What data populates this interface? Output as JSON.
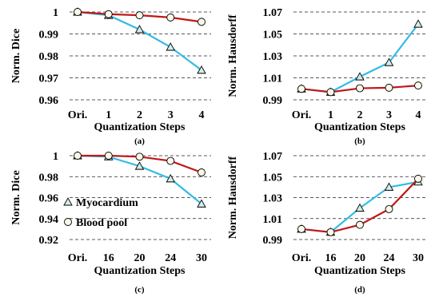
{
  "chart_data": [
    {
      "type": "line",
      "caption": "(a)",
      "xlabel": "Quantization Steps",
      "ylabel": "Norm. Dice",
      "categories": [
        "Ori.",
        "1",
        "2",
        "3",
        "4"
      ],
      "yticks": [
        "1",
        "0.99",
        "0.98",
        "0.97",
        "0.96"
      ],
      "ylim": [
        0.96,
        1.0
      ],
      "grid": true,
      "series": [
        {
          "name": "Myocardium",
          "color": "#33bbe6",
          "marker": "triangle",
          "values": [
            1.0,
            0.9985,
            0.992,
            0.984,
            0.9735
          ]
        },
        {
          "name": "Blood pool",
          "color": "#c01818",
          "marker": "circle",
          "values": [
            1.0,
            0.999,
            0.9985,
            0.9975,
            0.9955
          ]
        }
      ]
    },
    {
      "type": "line",
      "caption": "(b)",
      "xlabel": "Quantization Steps",
      "ylabel": "Norm. Hausdorff",
      "categories": [
        "Ori.",
        "1",
        "2",
        "3",
        "4"
      ],
      "yticks": [
        "1.07",
        "1.05",
        "1.03",
        "1.01",
        "0.99"
      ],
      "ylim": [
        0.99,
        1.07
      ],
      "grid": true,
      "series": [
        {
          "name": "Myocardium",
          "color": "#33bbe6",
          "marker": "triangle",
          "values": [
            1.0,
            0.997,
            1.011,
            1.024,
            1.059
          ]
        },
        {
          "name": "Blood pool",
          "color": "#c01818",
          "marker": "circle",
          "values": [
            1.0,
            0.997,
            1.0005,
            1.001,
            1.003
          ]
        }
      ]
    },
    {
      "type": "line",
      "caption": "(c)",
      "xlabel": "Quantization Steps",
      "ylabel": "Norm. Dice",
      "categories": [
        "Ori.",
        "16",
        "20",
        "24",
        "30"
      ],
      "yticks": [
        "1",
        "0.98",
        "0.96",
        "0.94",
        "0.92"
      ],
      "ylim": [
        0.92,
        1.0
      ],
      "grid": true,
      "legend": {
        "position": "bottom-left",
        "entries": [
          "Myocardium",
          "Blood pool"
        ]
      },
      "series": [
        {
          "name": "Myocardium",
          "color": "#33bbe6",
          "marker": "triangle",
          "values": [
            1.0,
            0.999,
            0.99,
            0.978,
            0.954
          ]
        },
        {
          "name": "Blood pool",
          "color": "#c01818",
          "marker": "circle",
          "values": [
            1.0,
            1.0,
            0.999,
            0.995,
            0.984
          ]
        }
      ]
    },
    {
      "type": "line",
      "caption": "(d)",
      "xlabel": "Quantization Steps",
      "ylabel": "Norm. Hausdorff",
      "categories": [
        "Ori.",
        "16",
        "20",
        "24",
        "30"
      ],
      "yticks": [
        "1.07",
        "1.05",
        "1.03",
        "1.01",
        "0.99"
      ],
      "ylim": [
        0.99,
        1.07
      ],
      "grid": true,
      "series": [
        {
          "name": "Myocardium",
          "color": "#33bbe6",
          "marker": "triangle",
          "values": [
            1.0,
            0.997,
            1.02,
            1.04,
            1.045
          ]
        },
        {
          "name": "Blood pool",
          "color": "#c01818",
          "marker": "circle",
          "values": [
            1.0,
            0.997,
            1.004,
            1.019,
            1.048
          ]
        }
      ]
    }
  ]
}
